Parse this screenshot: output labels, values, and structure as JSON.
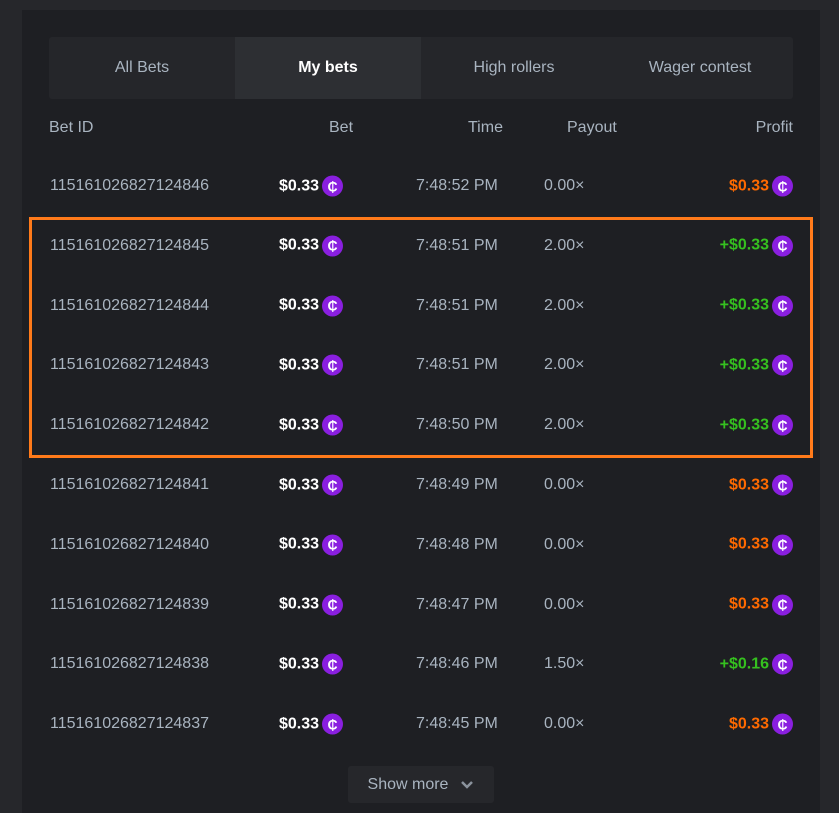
{
  "tabs": [
    {
      "label": "All Bets"
    },
    {
      "label": "My bets",
      "active": true
    },
    {
      "label": "High rollers"
    },
    {
      "label": "Wager contest"
    }
  ],
  "columns": {
    "id": "Bet ID",
    "bet": "Bet",
    "time": "Time",
    "payout": "Payout",
    "profit": "Profit"
  },
  "coin_icon": "₵",
  "colors": {
    "win": "#35c11f",
    "loss": "#ff6a00",
    "highlight": "#ff7a1a",
    "coin": "#8a1fe0"
  },
  "rows": [
    {
      "id": "115161026827124846",
      "bet": "$0.33",
      "time": "7:48:52 PM",
      "payout": "0.00×",
      "profit": "$0.33",
      "win": false
    },
    {
      "id": "115161026827124845",
      "bet": "$0.33",
      "time": "7:48:51 PM",
      "payout": "2.00×",
      "profit": "+$0.33",
      "win": true
    },
    {
      "id": "115161026827124844",
      "bet": "$0.33",
      "time": "7:48:51 PM",
      "payout": "2.00×",
      "profit": "+$0.33",
      "win": true
    },
    {
      "id": "115161026827124843",
      "bet": "$0.33",
      "time": "7:48:51 PM",
      "payout": "2.00×",
      "profit": "+$0.33",
      "win": true
    },
    {
      "id": "115161026827124842",
      "bet": "$0.33",
      "time": "7:48:50 PM",
      "payout": "2.00×",
      "profit": "+$0.33",
      "win": true
    },
    {
      "id": "115161026827124841",
      "bet": "$0.33",
      "time": "7:48:49 PM",
      "payout": "0.00×",
      "profit": "$0.33",
      "win": false
    },
    {
      "id": "115161026827124840",
      "bet": "$0.33",
      "time": "7:48:48 PM",
      "payout": "0.00×",
      "profit": "$0.33",
      "win": false
    },
    {
      "id": "115161026827124839",
      "bet": "$0.33",
      "time": "7:48:47 PM",
      "payout": "0.00×",
      "profit": "$0.33",
      "win": false
    },
    {
      "id": "115161026827124838",
      "bet": "$0.33",
      "time": "7:48:46 PM",
      "payout": "1.50×",
      "profit": "+$0.16",
      "win": true
    },
    {
      "id": "115161026827124837",
      "bet": "$0.33",
      "time": "7:48:45 PM",
      "payout": "0.00×",
      "profit": "$0.33",
      "win": false
    }
  ],
  "show_more": "Show more"
}
